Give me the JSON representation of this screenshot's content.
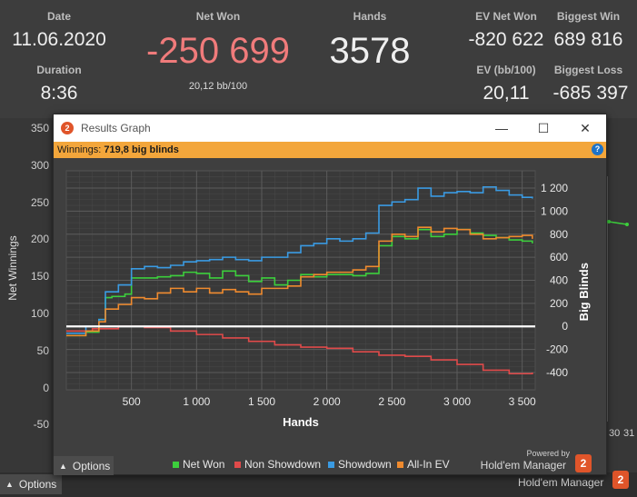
{
  "stats": {
    "date_label": "Date",
    "date_value": "11.06.2020",
    "duration_label": "Duration",
    "duration_value": "8:36",
    "net_won_label": "Net Won",
    "net_won_value": "-250 699",
    "net_won_sub": "20,12 bb/100",
    "hands_label": "Hands",
    "hands_value": "3578",
    "ev_net_won_label": "EV Net Won",
    "ev_net_won_value": "-820 622",
    "ev_bb_label": "EV (bb/100)",
    "ev_bb_value": "20,11",
    "biggest_win_label": "Biggest Win",
    "biggest_win_value": "689 816",
    "biggest_loss_label": "Biggest Loss",
    "biggest_loss_value": "-685 397",
    "colors": {
      "net_won": "#f07b7b",
      "label": "#bdbdbd"
    }
  },
  "background_chart": {
    "ylabel": "Net Winnings",
    "yticks": [
      "350",
      "300",
      "250",
      "200",
      "150",
      "100",
      "50",
      "0",
      "-50"
    ],
    "xticks_partial": [
      "30",
      "31"
    ]
  },
  "bottom": {
    "options_label": "Options",
    "brand": "Hold'em Manager",
    "logo_number": "2"
  },
  "window": {
    "title": "Results Graph",
    "minimize_glyph": "—",
    "maximize_glyph": "☐",
    "close_glyph": "✕",
    "winnings_label": "Winnings:",
    "winnings_value": "719,8 big blinds",
    "help_glyph": "?",
    "options_label": "Options",
    "powered_by": "Powered by",
    "brand": "Hold'em Manager",
    "logo_number": "2"
  },
  "chart_data": {
    "type": "line",
    "xlabel": "Hands",
    "ylabel": "Big Blinds",
    "xlim": [
      0,
      3600
    ],
    "ylim": [
      -550,
      1350
    ],
    "xticks": [
      500,
      1000,
      1500,
      2000,
      2500,
      3000,
      3500
    ],
    "xtick_labels": [
      "500",
      "1 000",
      "1 500",
      "2 000",
      "2 500",
      "3 000",
      "3 500"
    ],
    "yticks": [
      1200,
      1000,
      800,
      600,
      400,
      200,
      0,
      -200,
      -400
    ],
    "ytick_labels": [
      "1 200",
      "1 000",
      "800",
      "600",
      "400",
      "200",
      "0",
      "-200",
      "-400"
    ],
    "grid": true,
    "zero_line": true,
    "legend_position": "bottom",
    "series": [
      {
        "name": "Net Won",
        "color": "#3ccf3c",
        "x": [
          0,
          150,
          250,
          300,
          350,
          450,
          500,
          600,
          700,
          800,
          900,
          1000,
          1100,
          1200,
          1300,
          1400,
          1500,
          1600,
          1700,
          1800,
          1900,
          2000,
          2100,
          2200,
          2300,
          2400,
          2500,
          2600,
          2700,
          2800,
          2900,
          3000,
          3100,
          3200,
          3300,
          3400,
          3500,
          3578
        ],
        "y": [
          -80,
          -50,
          60,
          250,
          260,
          280,
          420,
          420,
          430,
          440,
          470,
          460,
          420,
          480,
          440,
          390,
          420,
          360,
          400,
          450,
          430,
          450,
          450,
          440,
          460,
          700,
          780,
          760,
          840,
          780,
          800,
          840,
          810,
          790,
          770,
          750,
          740,
          720
        ]
      },
      {
        "name": "Non Showdown",
        "color": "#e04a4a",
        "x": [
          0,
          200,
          400,
          600,
          800,
          1000,
          1200,
          1400,
          1600,
          1800,
          2000,
          2200,
          2400,
          2600,
          2800,
          3000,
          3200,
          3400,
          3578
        ],
        "y": [
          -40,
          -20,
          0,
          -10,
          -40,
          -70,
          -100,
          -130,
          -160,
          -180,
          -190,
          -220,
          -250,
          -260,
          -290,
          -330,
          -380,
          -410,
          -400
        ]
      },
      {
        "name": "Showdown",
        "color": "#3a9be3",
        "x": [
          0,
          150,
          250,
          300,
          400,
          500,
          600,
          700,
          800,
          900,
          1000,
          1100,
          1200,
          1300,
          1400,
          1500,
          1600,
          1700,
          1800,
          1900,
          2000,
          2100,
          2200,
          2300,
          2400,
          2500,
          2600,
          2700,
          2800,
          2900,
          3000,
          3100,
          3200,
          3300,
          3400,
          3500,
          3578
        ],
        "y": [
          -60,
          0,
          60,
          300,
          360,
          500,
          520,
          510,
          530,
          560,
          570,
          580,
          600,
          580,
          570,
          600,
          600,
          640,
          700,
          720,
          760,
          740,
          760,
          810,
          1050,
          1080,
          1100,
          1200,
          1130,
          1160,
          1170,
          1160,
          1210,
          1180,
          1140,
          1120,
          1110
        ]
      },
      {
        "name": "All-In EV",
        "color": "#ef8a2e",
        "x": [
          0,
          150,
          250,
          300,
          400,
          500,
          600,
          700,
          800,
          900,
          1000,
          1100,
          1200,
          1300,
          1400,
          1500,
          1600,
          1700,
          1800,
          1900,
          2000,
          2100,
          2200,
          2300,
          2400,
          2500,
          2600,
          2700,
          2800,
          2900,
          3000,
          3100,
          3200,
          3300,
          3400,
          3500,
          3578
        ],
        "y": [
          -80,
          -40,
          40,
          150,
          190,
          250,
          240,
          290,
          330,
          300,
          330,
          290,
          320,
          300,
          280,
          330,
          330,
          350,
          430,
          450,
          470,
          470,
          490,
          520,
          740,
          800,
          780,
          860,
          820,
          850,
          840,
          800,
          760,
          770,
          780,
          790,
          760
        ]
      }
    ]
  }
}
